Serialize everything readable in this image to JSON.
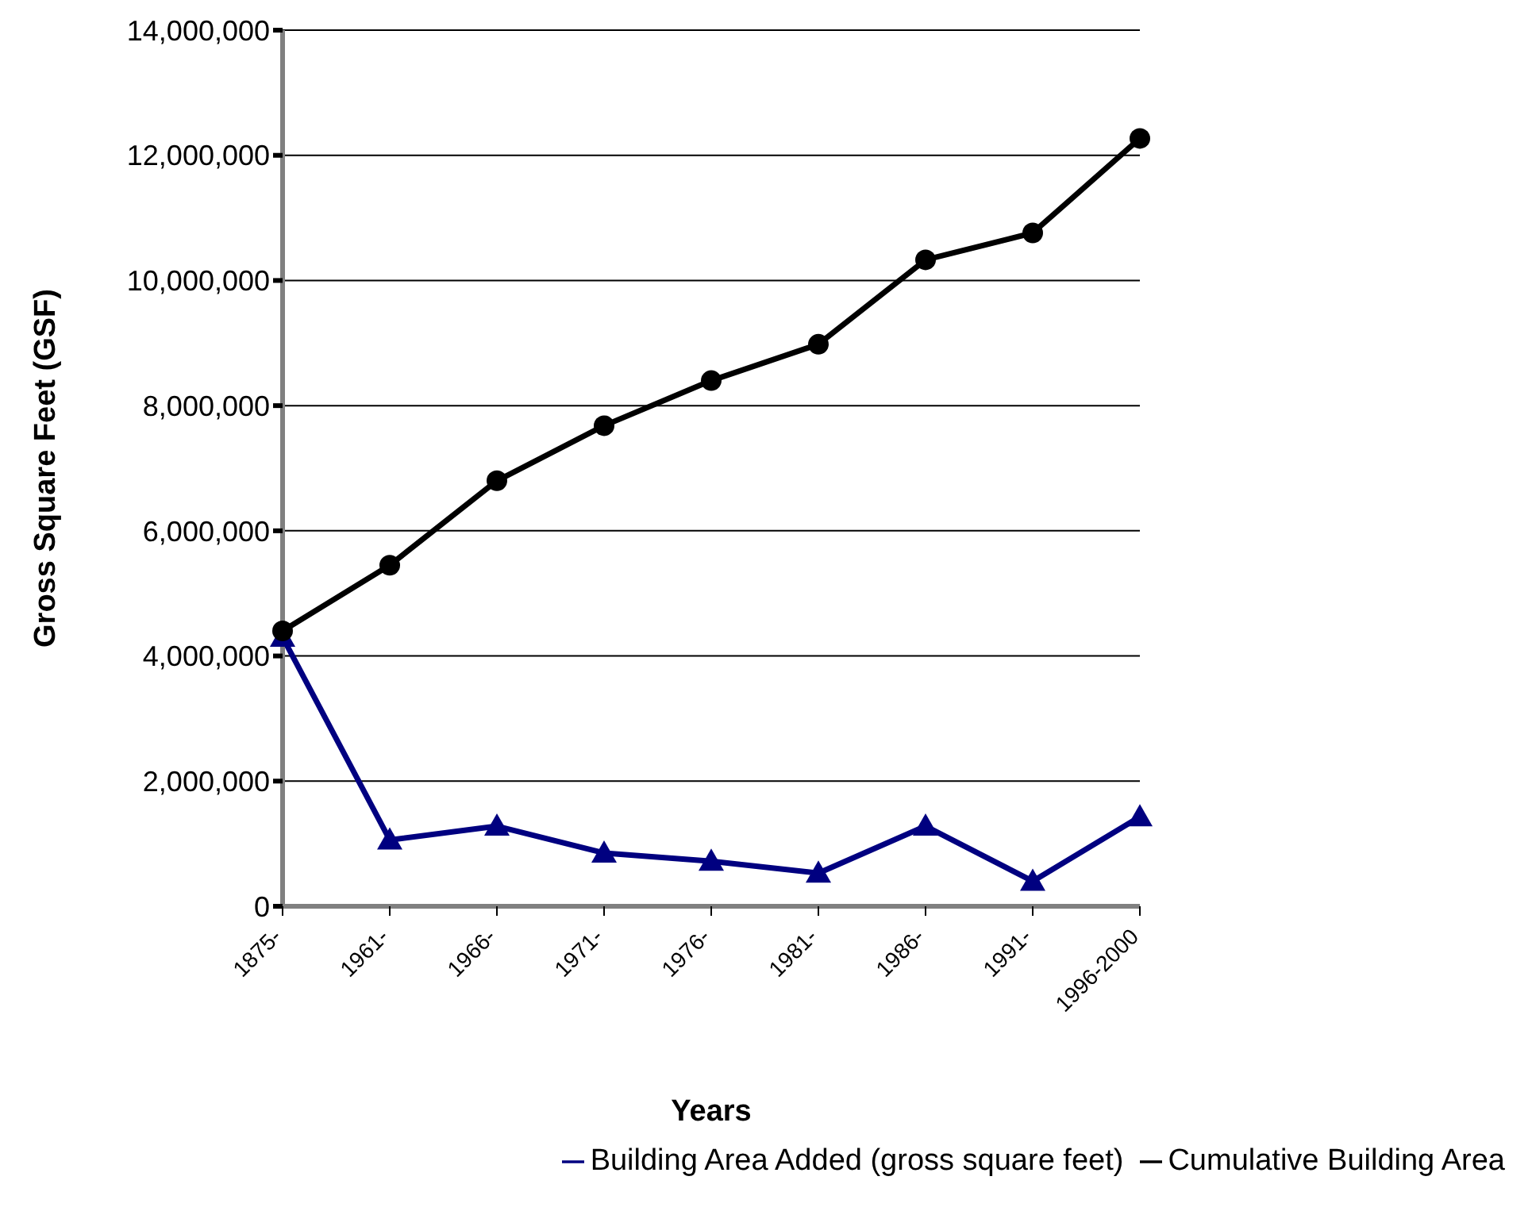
{
  "chart_data": {
    "type": "line",
    "xlabel": "Years",
    "ylabel": "Gross Square Feet (GSF)",
    "categories": [
      "1875-",
      "1961-",
      "1966-",
      "1971-",
      "1976-",
      "1981-",
      "1986-",
      "1991-",
      "1996-2000"
    ],
    "series": [
      {
        "name": "Building Area Added (gross square feet)",
        "color": "#000080",
        "marker": "triangle",
        "values": [
          4300000,
          1060000,
          1280000,
          850000,
          720000,
          530000,
          1280000,
          400000,
          1430000
        ]
      },
      {
        "name": "Cumulative Building Area",
        "color": "#000000",
        "marker": "circle",
        "values": [
          4400000,
          5450000,
          6800000,
          7680000,
          8400000,
          8980000,
          10330000,
          10760000,
          12270000
        ]
      }
    ],
    "ylim": [
      0,
      14000000
    ],
    "yticks": [
      0,
      {
        "value": 2000000,
        "label": "2,000,000"
      },
      {
        "value": 4000000,
        "label": "4,000,000"
      },
      {
        "value": 6000000,
        "label": "6,000,000"
      },
      {
        "value": 8000000,
        "label": "8,000,000"
      },
      {
        "value": 10000000,
        "label": "10,000,000"
      },
      {
        "value": 12000000,
        "label": "12,000,000"
      },
      {
        "value": 14000000,
        "label": "14,000,000"
      }
    ],
    "grid": "y",
    "legend": "bottom"
  }
}
